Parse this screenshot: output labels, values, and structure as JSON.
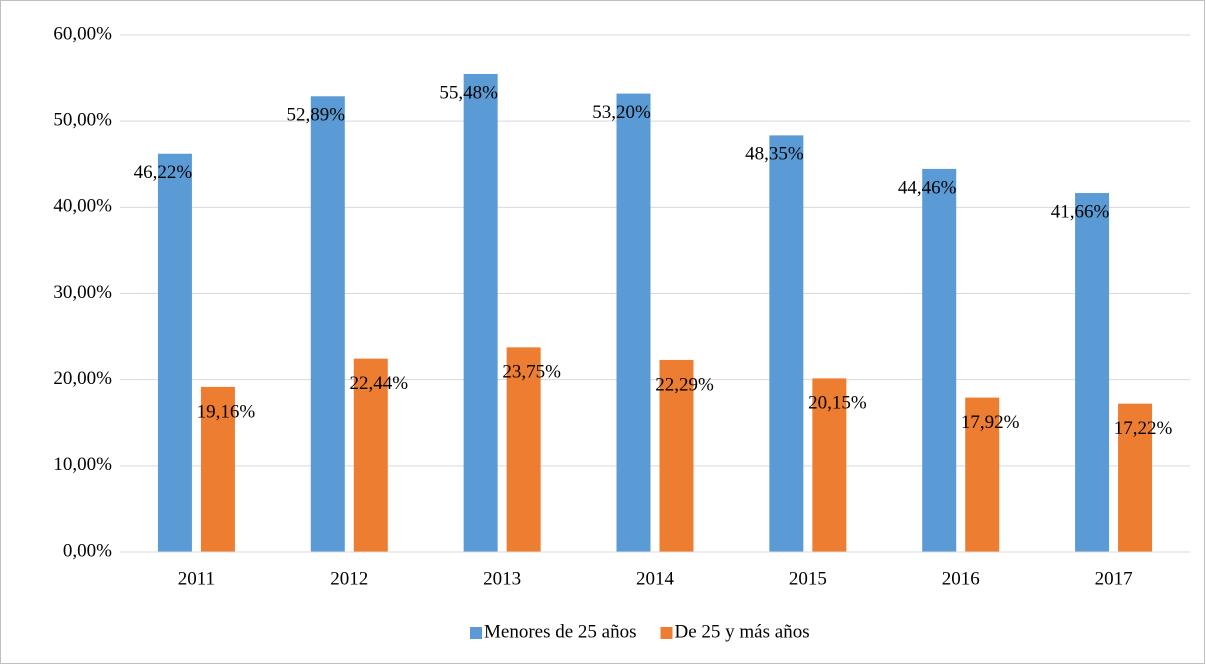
{
  "chart_data": {
    "type": "bar",
    "categories": [
      "2011",
      "2012",
      "2013",
      "2014",
      "2015",
      "2016",
      "2017"
    ],
    "series": [
      {
        "name": "Menores de 25 años",
        "color": "#5b9bd5",
        "values": [
          46.22,
          52.89,
          55.48,
          53.2,
          48.35,
          44.46,
          41.66
        ],
        "value_labels": [
          "46,22%",
          "52,89%",
          "55,48%",
          "53,20%",
          "48,35%",
          "44,46%",
          "41,66%"
        ]
      },
      {
        "name": "De 25 y más años",
        "color": "#ed7d31",
        "values": [
          19.16,
          22.44,
          23.75,
          22.29,
          20.15,
          17.92,
          17.22
        ],
        "value_labels": [
          "19,16%",
          "22,44%",
          "23,75%",
          "22,29%",
          "20,15%",
          "17,92%",
          "17,22%"
        ]
      }
    ],
    "ylim": [
      0,
      60
    ],
    "yticks": [
      {
        "value": 0,
        "label": "0,00%"
      },
      {
        "value": 10,
        "label": "10,00%"
      },
      {
        "value": 20,
        "label": "20,00%"
      },
      {
        "value": 30,
        "label": "30,00%"
      },
      {
        "value": 40,
        "label": "40,00%"
      },
      {
        "value": 50,
        "label": "50,00%"
      },
      {
        "value": 60,
        "label": "60,00%"
      }
    ],
    "grid": true,
    "legend": "bottom"
  }
}
